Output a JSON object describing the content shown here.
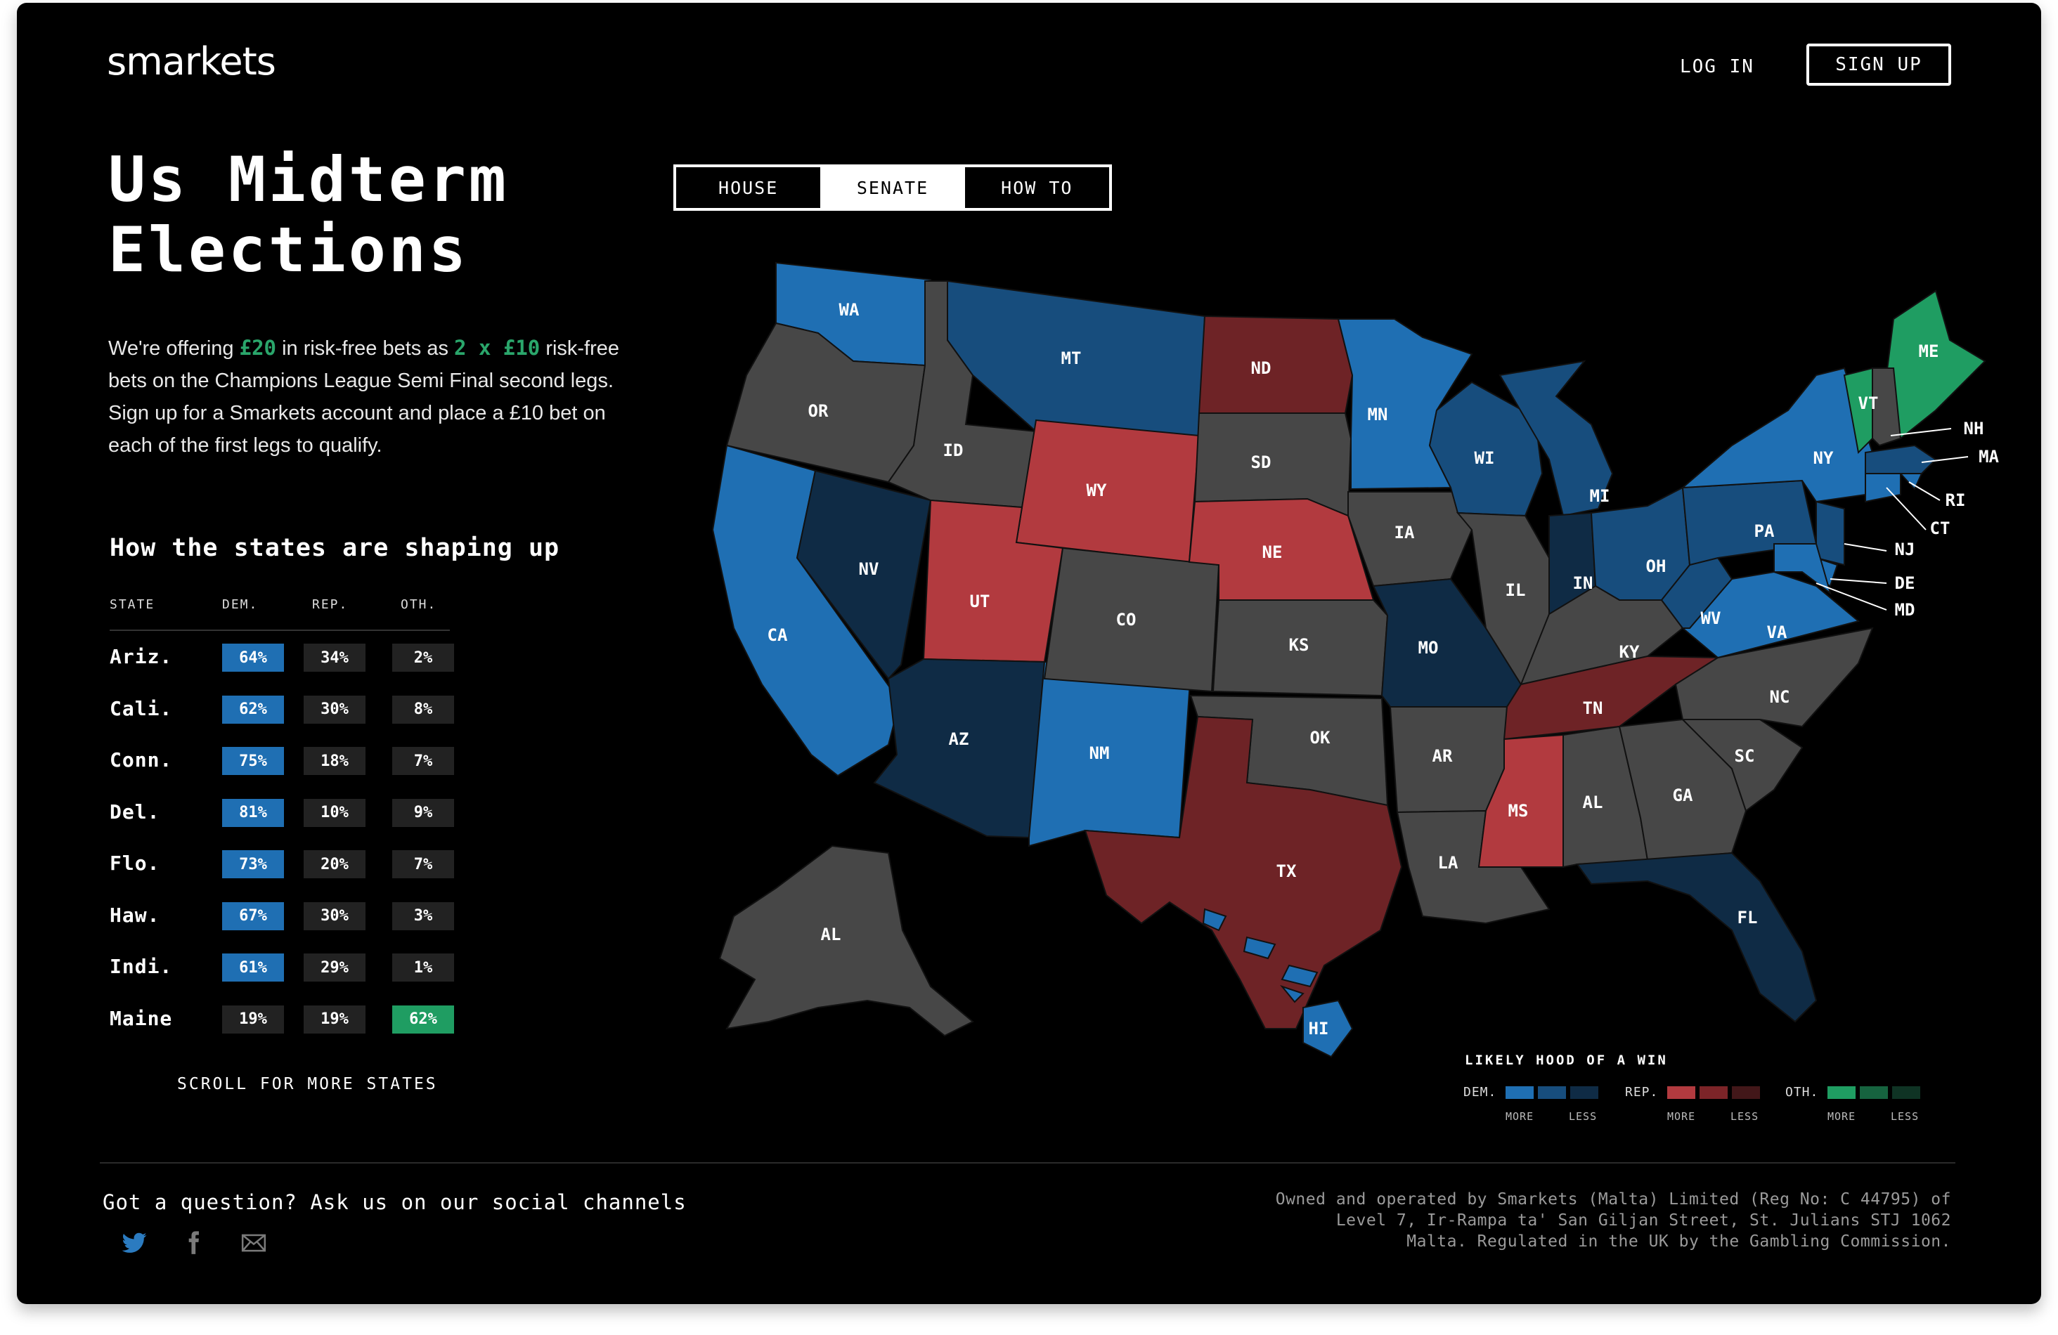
{
  "header": {
    "logo": "smarkets",
    "login_label": "LOG IN",
    "signup_label": "SIGN UP"
  },
  "hero": {
    "title_line1": "Us Midterm",
    "title_line2": "Elections",
    "promo_prefix": "We're offering ",
    "promo_amount": "£20",
    "promo_mid": " in risk-free bets as ",
    "promo_bets": "2 x £10",
    "promo_suffix": " risk-free bets on the Champions League Semi Final second legs. Sign up for a Smarkets account and place a £10 bet on each of the first legs to qualify."
  },
  "table": {
    "heading": "How the states are shaping up",
    "columns": [
      "STATE",
      "DEM.",
      "REP.",
      "OTH."
    ],
    "rows": [
      {
        "state": "Ariz.",
        "dem": "64%",
        "rep": "34%",
        "oth": "2%",
        "lead": "dem"
      },
      {
        "state": "Cali.",
        "dem": "62%",
        "rep": "30%",
        "oth": "8%",
        "lead": "dem"
      },
      {
        "state": "Conn.",
        "dem": "75%",
        "rep": "18%",
        "oth": "7%",
        "lead": "dem"
      },
      {
        "state": "Del.",
        "dem": "81%",
        "rep": "10%",
        "oth": "9%",
        "lead": "dem"
      },
      {
        "state": "Flo.",
        "dem": "73%",
        "rep": "20%",
        "oth": "7%",
        "lead": "dem"
      },
      {
        "state": "Haw.",
        "dem": "67%",
        "rep": "30%",
        "oth": "3%",
        "lead": "dem"
      },
      {
        "state": "Indi.",
        "dem": "61%",
        "rep": "29%",
        "oth": "1%",
        "lead": "dem"
      },
      {
        "state": "Maine",
        "dem": "19%",
        "rep": "19%",
        "oth": "62%",
        "lead": "oth"
      }
    ],
    "scroll_label": "SCROLL FOR MORE STATES"
  },
  "tabs": [
    {
      "label": "HOUSE",
      "active": false
    },
    {
      "label": "SENATE",
      "active": true
    },
    {
      "label": "HOW TO",
      "active": false
    }
  ],
  "map": {
    "states": [
      "WA",
      "OR",
      "CA",
      "NV",
      "ID",
      "MT",
      "WY",
      "UT",
      "AZ",
      "NM",
      "CO",
      "ND",
      "SD",
      "NE",
      "KS",
      "OK",
      "TX",
      "MN",
      "IA",
      "MO",
      "AR",
      "LA",
      "WI",
      "IL",
      "MI",
      "IN",
      "OH",
      "KY",
      "TN",
      "MS",
      "AL",
      "GA",
      "FL",
      "SC",
      "NC",
      "VA",
      "WV",
      "PA",
      "NY",
      "VT",
      "ME",
      "NH",
      "MA",
      "RI",
      "CT",
      "NJ",
      "DE",
      "MD",
      "AL",
      "HI"
    ],
    "alaska_label": "AL",
    "hawaii_label": "HI"
  },
  "legend": {
    "title": "LIKELY HOOD OF A WIN",
    "groups": [
      {
        "label": "DEM.",
        "colors": [
          "#1f6fb3",
          "#174d7d",
          "#0f2b45"
        ]
      },
      {
        "label": "REP.",
        "colors": [
          "#b23a3f",
          "#7c2428",
          "#421719"
        ]
      },
      {
        "label": "OTH.",
        "colors": [
          "#1f9d62",
          "#16633f",
          "#0f3324"
        ]
      }
    ],
    "more_label": "MORE",
    "less_label": "LESS"
  },
  "colors": {
    "dem_strong": "#1f6fb3",
    "dem_mid": "#1a4f82",
    "dem_dark": "#0f2b45",
    "rep_strong": "#b23a3f",
    "rep_dark": "#6e2326",
    "oth": "#1f9d62",
    "neutral": "#474747"
  },
  "footer": {
    "question": "Got a question? Ask us on our social channels",
    "legal_line1": "Owned and operated by Smarkets (Malta) Limited (Reg No: C 44795) of",
    "legal_line2": "Level 7, Ir-Rampa ta' San Giljan Street, St. Julians STJ 1062",
    "legal_line3": "Malta. Regulated in the UK by the Gambling Commission."
  }
}
